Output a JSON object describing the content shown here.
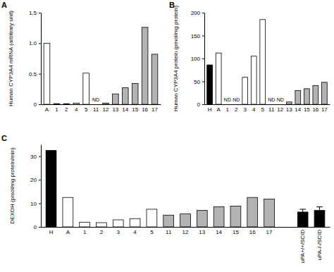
{
  "chart_data": [
    {
      "type": "bar",
      "title": "A",
      "y_label": "Human CYP3A4 mRNA (arbitrary unit)",
      "categories": [
        "A",
        "1",
        "2",
        "4",
        "5",
        "11",
        "12",
        "13",
        "14",
        "15",
        "16",
        "17"
      ],
      "values": [
        1.0,
        0.01,
        0.01,
        0.02,
        0.51,
        null,
        0.02,
        0.17,
        0.27,
        0.34,
        1.26,
        0.82
      ],
      "value_labels": [
        null,
        null,
        null,
        null,
        null,
        "ND",
        null,
        null,
        null,
        null,
        null,
        null
      ],
      "colors": [
        "#ffffff",
        "#ffffff",
        "#ffffff",
        "#ffffff",
        "#ffffff",
        "#b3b3b3",
        "#b3b3b3",
        "#b3b3b3",
        "#b3b3b3",
        "#b3b3b3",
        "#b3b3b3",
        "#b3b3b3"
      ],
      "ylim": [
        0,
        1.5
      ],
      "yticks": [
        0,
        0.5,
        {
          "value": 1,
          "label": "1.0"
        },
        1.5
      ]
    },
    {
      "type": "bar",
      "title": "B",
      "y_label": "Human CYP3A4 protein (pmol/mg protein)",
      "categories": [
        "H",
        "A",
        "1",
        "2",
        "3",
        "4",
        "5",
        "11",
        "12",
        "13",
        "14",
        "15",
        "16",
        "17"
      ],
      "values": [
        86,
        112,
        null,
        null,
        59,
        105,
        185,
        null,
        null,
        5,
        30,
        34,
        41,
        48
      ],
      "value_labels": [
        null,
        null,
        "ND",
        "ND",
        null,
        null,
        null,
        "ND",
        "ND",
        null,
        null,
        null,
        null,
        null
      ],
      "colors": [
        "#000000",
        "#ffffff",
        "#ffffff",
        "#ffffff",
        "#ffffff",
        "#ffffff",
        "#ffffff",
        "#b3b3b3",
        "#b3b3b3",
        "#b3b3b3",
        "#b3b3b3",
        "#b3b3b3",
        "#b3b3b3",
        "#b3b3b3"
      ],
      "ylim": [
        0,
        200
      ],
      "yticks": [
        0,
        50,
        100,
        150,
        200
      ]
    },
    {
      "type": "bar",
      "title": "C",
      "y_label": "DEXOH (pmol/mg protein/min)",
      "categories": [
        "H",
        "A",
        "1",
        "2",
        "3",
        "4",
        "5",
        "11",
        "12",
        "13",
        "14",
        "15",
        "16",
        "17",
        null,
        "uPA+/+/SCID",
        "uPA-/-/SCID"
      ],
      "values": [
        32.5,
        12.5,
        2,
        1.8,
        3,
        3.5,
        7.5,
        5,
        5.5,
        7,
        8.5,
        8.8,
        12.5,
        11.8,
        null,
        6.3,
        7.0
      ],
      "errors": [
        null,
        null,
        null,
        null,
        null,
        null,
        null,
        null,
        null,
        null,
        null,
        null,
        null,
        null,
        null,
        1.2,
        1.5
      ],
      "colors": [
        "#000000",
        "#ffffff",
        "#ffffff",
        "#ffffff",
        "#ffffff",
        "#ffffff",
        "#ffffff",
        "#b3b3b3",
        "#b3b3b3",
        "#b3b3b3",
        "#b3b3b3",
        "#b3b3b3",
        "#b3b3b3",
        "#b3b3b3",
        null,
        "#000000",
        "#000000"
      ],
      "ylim": [
        0,
        35
      ],
      "yticks": [
        0,
        10,
        20,
        30
      ]
    }
  ]
}
